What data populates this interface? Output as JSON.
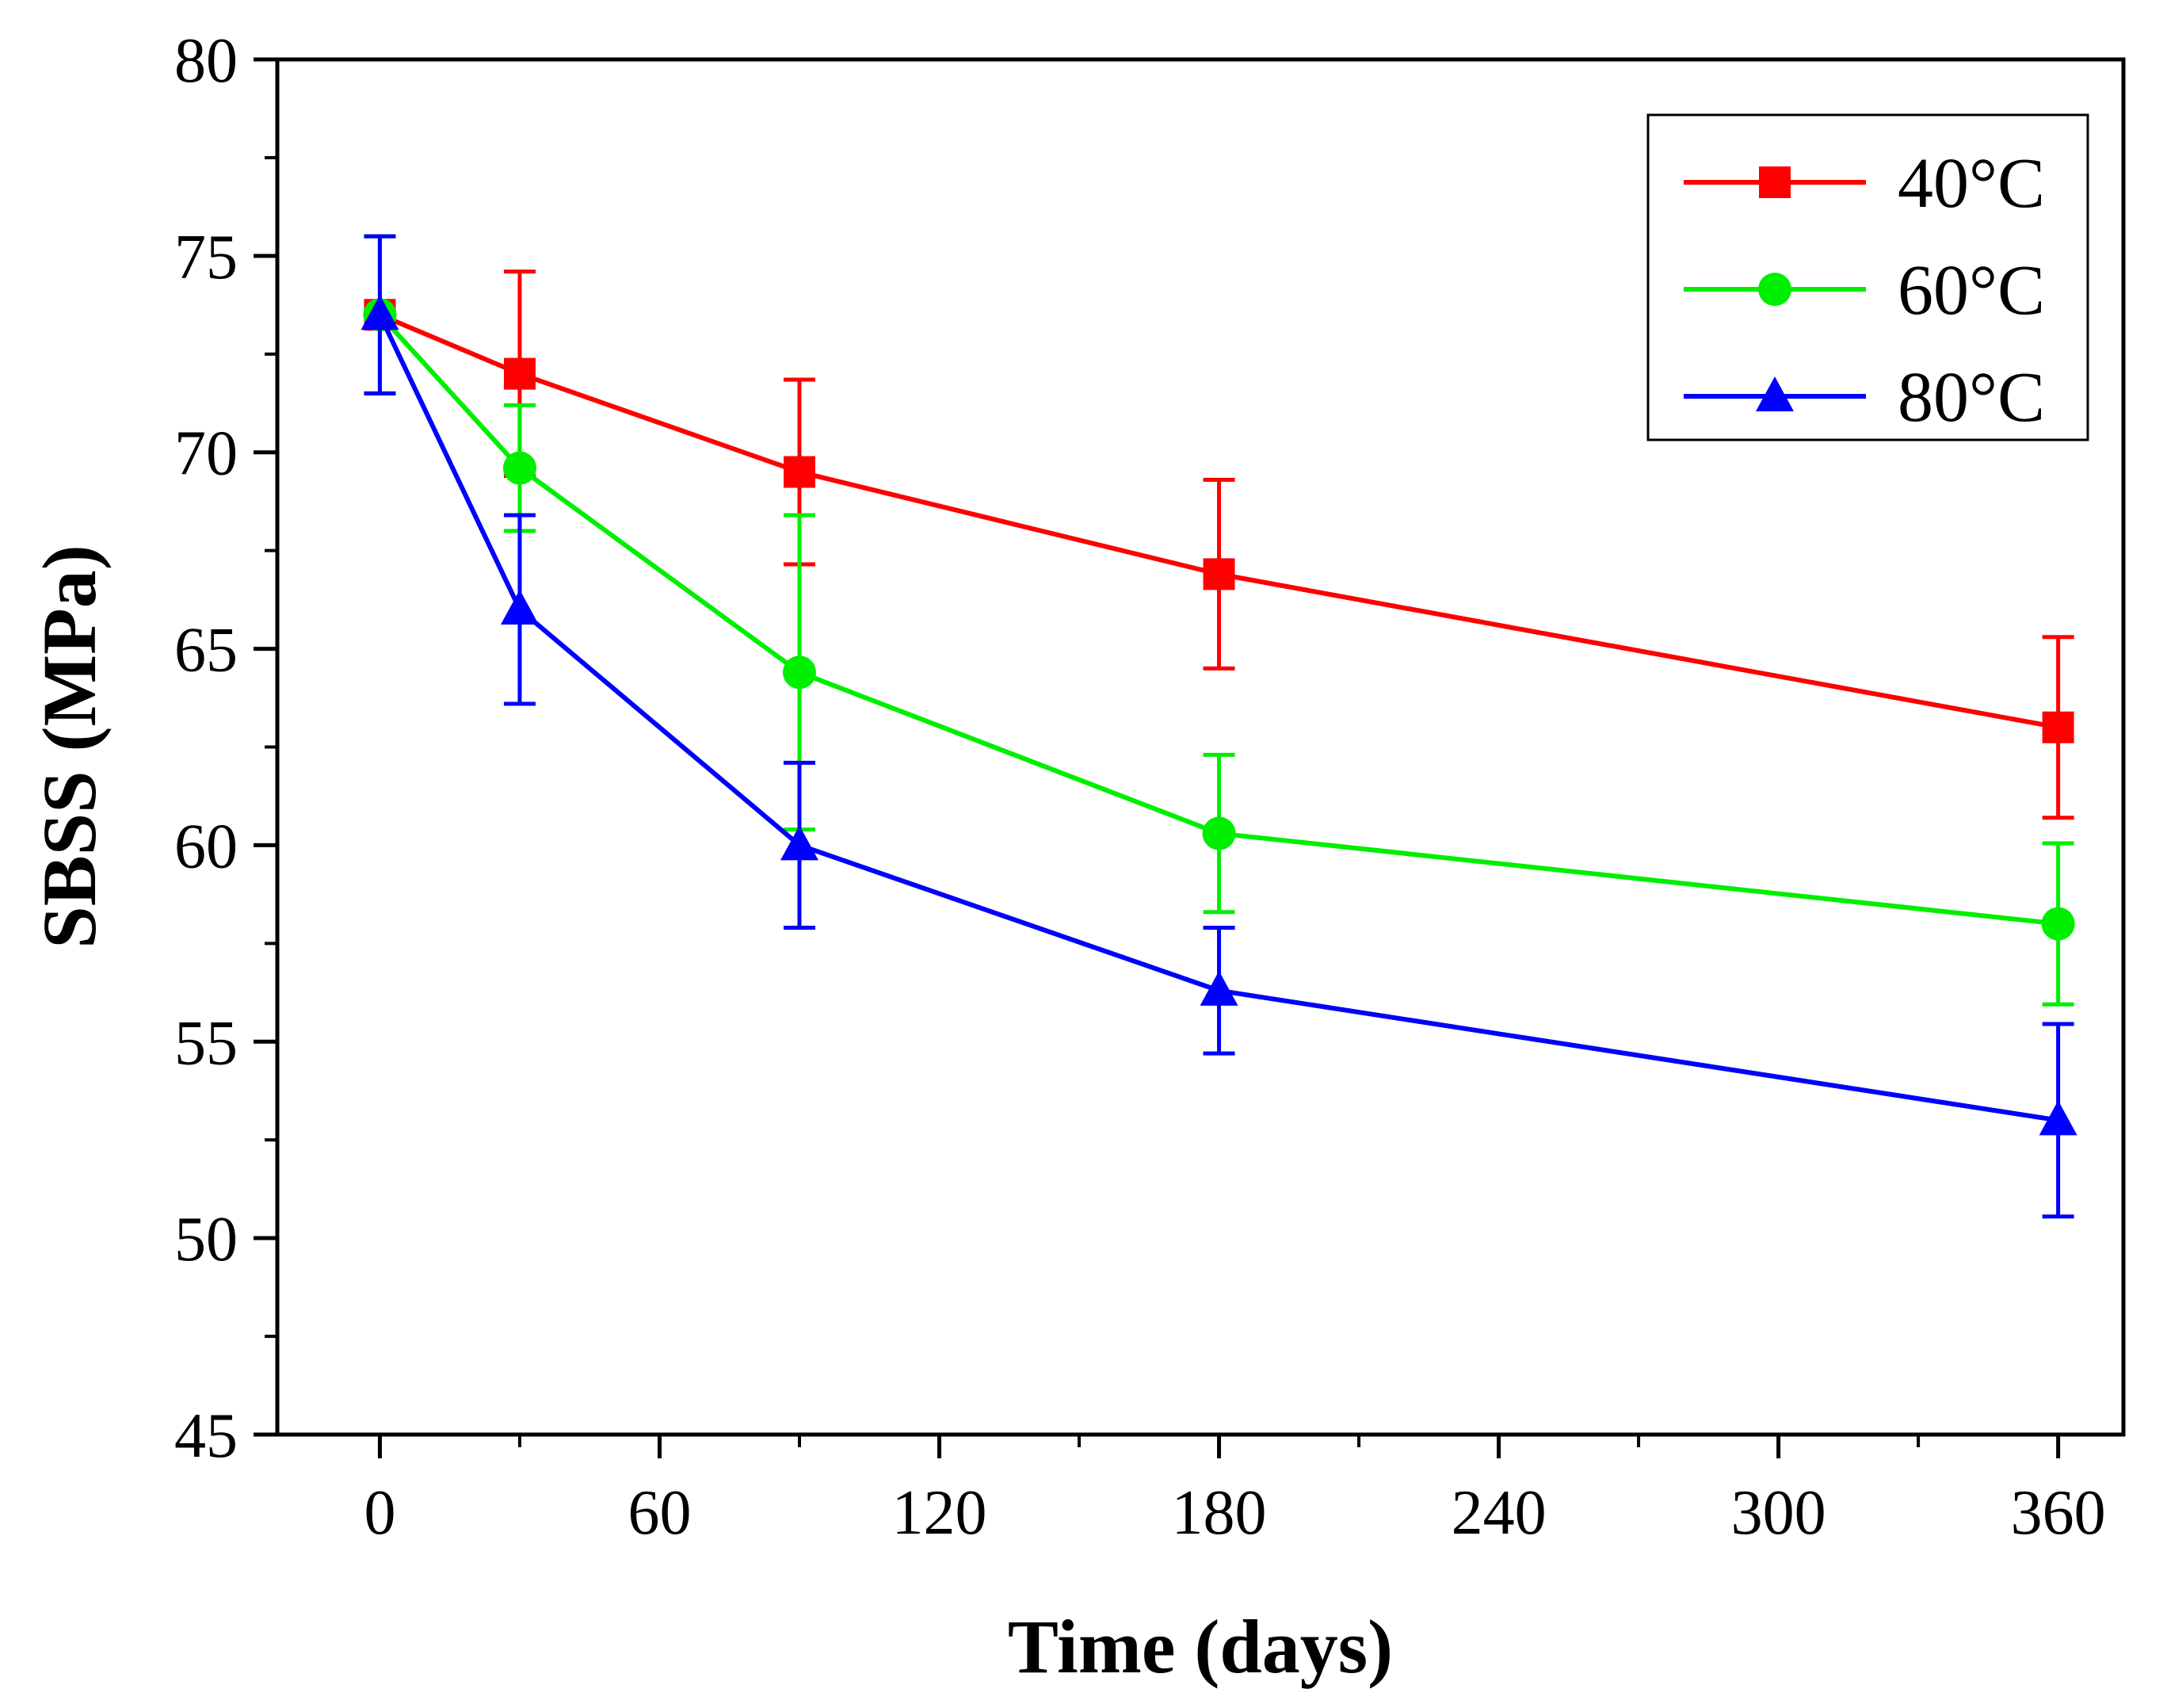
{
  "chart_data": {
    "type": "line",
    "xlabel": "Time (days)",
    "ylabel": "SBSS (MPa)",
    "xlim": [
      -22,
      374
    ],
    "ylim": [
      45,
      80
    ],
    "xticks": [
      0,
      60,
      120,
      180,
      240,
      300,
      360
    ],
    "xtick_labels": [
      "0",
      "60",
      "120",
      "180",
      "240",
      "300",
      "360"
    ],
    "yticks": [
      45,
      50,
      55,
      60,
      65,
      70,
      75,
      80
    ],
    "ytick_labels": [
      "45",
      "50",
      "55",
      "60",
      "65",
      "70",
      "75",
      "80"
    ],
    "legend_position": "top-right",
    "grid": false,
    "series": [
      {
        "name": "40°C",
        "color": "#ff0000",
        "marker": "square",
        "x": [
          0,
          30,
          90,
          180,
          360
        ],
        "y": [
          73.5,
          72.0,
          69.5,
          66.9,
          63.0
        ],
        "error": [
          2.0,
          2.6,
          2.35,
          2.4,
          2.3
        ]
      },
      {
        "name": "60°C",
        "color": "#00ee00",
        "marker": "circle",
        "x": [
          0,
          30,
          90,
          180,
          360
        ],
        "y": [
          73.5,
          69.6,
          64.4,
          60.3,
          58.0
        ],
        "error": [
          2.0,
          1.6,
          4.0,
          2.0,
          2.05
        ]
      },
      {
        "name": "80°C",
        "color": "#0000ff",
        "marker": "triangle",
        "x": [
          0,
          30,
          90,
          180,
          360
        ],
        "y": [
          73.5,
          66.0,
          60.0,
          56.3,
          53.0
        ],
        "error": [
          2.0,
          2.4,
          2.1,
          1.6,
          2.45
        ]
      }
    ]
  }
}
